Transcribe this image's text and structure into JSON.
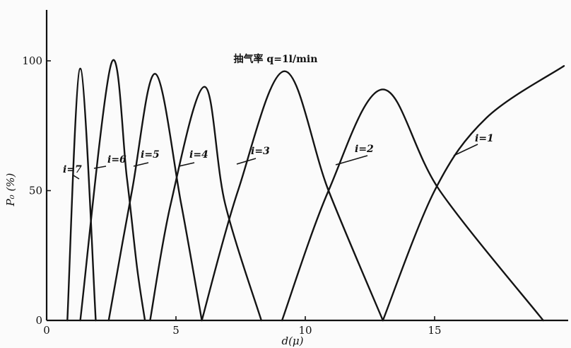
{
  "chart_data": {
    "type": "line",
    "title": "抽气率 q=1l/min",
    "xlabel": "d(μ)",
    "ylabel": "P₀ (%)",
    "xlim": [
      0,
      20
    ],
    "ylim": [
      0,
      100
    ],
    "x_ticks": [
      0,
      5,
      10,
      15
    ],
    "x_tick_labels": [
      "0",
      "5",
      "10",
      "15"
    ],
    "y_ticks": [
      0,
      50,
      100
    ],
    "y_tick_labels": [
      "0",
      "50",
      "100"
    ],
    "grid": false,
    "legend": "none",
    "series": [
      {
        "name": "i=7",
        "points": [
          [
            0.8,
            0
          ],
          [
            1.3,
            97
          ],
          [
            1.9,
            0
          ]
        ]
      },
      {
        "name": "i=6",
        "points": [
          [
            1.3,
            0
          ],
          [
            2.5,
            99
          ],
          [
            3.1,
            55
          ],
          [
            3.5,
            20
          ],
          [
            3.8,
            0
          ]
        ]
      },
      {
        "name": "i=5",
        "points": [
          [
            2.4,
            0
          ],
          [
            3.3,
            50
          ],
          [
            4.2,
            95
          ],
          [
            5.2,
            45
          ],
          [
            6.0,
            0
          ]
        ]
      },
      {
        "name": "i=4",
        "points": [
          [
            4.0,
            0
          ],
          [
            4.8,
            45
          ],
          [
            6.1,
            90
          ],
          [
            6.9,
            45
          ],
          [
            8.3,
            0
          ]
        ]
      },
      {
        "name": "i=3",
        "points": [
          [
            6.0,
            0
          ],
          [
            7.4,
            50
          ],
          [
            9.2,
            96
          ],
          [
            10.9,
            50
          ],
          [
            13.0,
            0
          ]
        ]
      },
      {
        "name": "i=2",
        "points": [
          [
            9.1,
            0
          ],
          [
            10.9,
            50
          ],
          [
            13.0,
            89
          ],
          [
            15.2,
            50
          ],
          [
            19.2,
            0
          ]
        ]
      },
      {
        "name": "i=1",
        "points": [
          [
            13.0,
            0
          ],
          [
            15.0,
            50
          ],
          [
            17.0,
            78
          ],
          [
            20.0,
            98
          ]
        ]
      }
    ],
    "annotations": [
      {
        "text": "i=7",
        "target": "i=7"
      },
      {
        "text": "i=6",
        "target": "i=6"
      },
      {
        "text": "i=5",
        "target": "i=5"
      },
      {
        "text": "i=4",
        "target": "i=4"
      },
      {
        "text": "i=3",
        "target": "i=3"
      },
      {
        "text": "i=2",
        "target": "i=2"
      },
      {
        "text": "i=1",
        "target": "i=1"
      }
    ],
    "colors": {
      "line": "#141414",
      "background": "#fbfbfb"
    }
  }
}
